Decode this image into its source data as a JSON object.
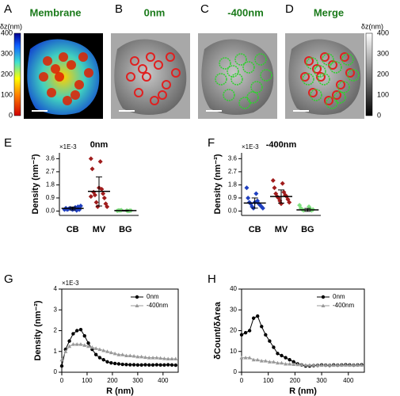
{
  "panels": [
    {
      "label": "A",
      "title": "Membrane"
    },
    {
      "label": "B",
      "title": "0nm"
    },
    {
      "label": "C",
      "title": "-400nm"
    },
    {
      "label": "D",
      "title": "Merge"
    }
  ],
  "colorbars": [
    {
      "title": "δz(nm)",
      "ticks": [
        400,
        300,
        200,
        100,
        0
      ]
    },
    {
      "title": "δz(nm)",
      "ticks": [
        400,
        300,
        200,
        100,
        0
      ]
    }
  ],
  "chart_data": [
    {
      "type": "dot",
      "panel": "E",
      "title": "0nm",
      "multiplier": "×1E-3",
      "y_label": "Density (nm⁻²)",
      "categories": [
        "CB",
        "MV",
        "BG"
      ],
      "colors": [
        "#1f3fbf",
        "#a01c1c",
        "#7fe07f"
      ],
      "points": [
        [
          0.1,
          0.15,
          0.2,
          0.25,
          0.1,
          0.05,
          0.15,
          0.3,
          0.2,
          0.1,
          0.15,
          0.35,
          0.1
        ],
        [
          3.6,
          3.4,
          2.9,
          1.5,
          1.3,
          1.2,
          1.1,
          0.9,
          0.6,
          0.5,
          0.3,
          0.3,
          1.6,
          1.0
        ],
        [
          0.02,
          0.03,
          0.05,
          0.0,
          0.04,
          0.02,
          0.06,
          0.03
        ]
      ],
      "means": [
        0.18,
        1.35,
        0.03
      ],
      "sd": [
        0.1,
        1.0,
        0.03
      ],
      "ylim": [
        -0.3,
        4.0
      ],
      "yticks": [
        {
          "value": 0,
          "label": "0.0"
        },
        0.9,
        1.8,
        2.7,
        3.6
      ]
    },
    {
      "type": "dot",
      "panel": "F",
      "title": "-400nm",
      "multiplier": "×1E-3",
      "y_label": "Density (nm⁻²)",
      "categories": [
        "CB",
        "MV",
        "BG"
      ],
      "colors": [
        "#1f3fbf",
        "#a01c1c",
        "#7fe07f"
      ],
      "points": [
        [
          1.6,
          1.2,
          0.9,
          0.7,
          0.6,
          0.5,
          0.5,
          0.4,
          0.3,
          0.3,
          0.2,
          0.2,
          0.6
        ],
        [
          2.1,
          1.9,
          1.6,
          1.3,
          1.2,
          1.1,
          1.0,
          1.0,
          0.9,
          0.8,
          0.7,
          0.6,
          0.5
        ],
        [
          0.4,
          0.3,
          0.2,
          0.15,
          0.1,
          0.05,
          0.05,
          0.1
        ]
      ],
      "means": [
        0.55,
        1.0,
        0.08
      ],
      "sd": [
        0.35,
        0.45,
        0.1
      ],
      "ylim": [
        -0.3,
        4.0
      ],
      "yticks": [
        {
          "value": 0,
          "label": "0.0"
        },
        0.9,
        1.8,
        2.7,
        3.6
      ]
    },
    {
      "type": "line",
      "panel": "G",
      "multiplier": "×1E-3",
      "y_label": "Density (nm⁻²)",
      "x_label": "R (nm)",
      "x": [
        0,
        15,
        30,
        45,
        60,
        75,
        90,
        105,
        120,
        135,
        150,
        165,
        180,
        195,
        210,
        225,
        240,
        255,
        270,
        285,
        300,
        315,
        330,
        345,
        360,
        375,
        390,
        405,
        420,
        435,
        450
      ],
      "series": [
        {
          "name": "0nm",
          "color": "#000000",
          "values": [
            0.3,
            1.1,
            1.5,
            1.85,
            2.0,
            2.05,
            1.75,
            1.4,
            1.1,
            0.85,
            0.7,
            0.6,
            0.5,
            0.45,
            0.42,
            0.4,
            0.38,
            0.37,
            0.36,
            0.36,
            0.35,
            0.35,
            0.36,
            0.35,
            0.35,
            0.36,
            0.35,
            0.35,
            0.36,
            0.35,
            0.34
          ]
        },
        {
          "name": "-400nm",
          "color": "#999999",
          "values": [
            0.6,
            1.0,
            1.25,
            1.35,
            1.35,
            1.35,
            1.3,
            1.25,
            1.2,
            1.15,
            1.1,
            1.05,
            1.0,
            0.95,
            0.9,
            0.85,
            0.85,
            0.8,
            0.8,
            0.78,
            0.75,
            0.75,
            0.72,
            0.7,
            0.7,
            0.7,
            0.68,
            0.66,
            0.65,
            0.65,
            0.65
          ]
        }
      ],
      "xlim": [
        0,
        460
      ],
      "ylim": [
        0,
        4
      ],
      "xticks": [
        0,
        100,
        200,
        300,
        400
      ],
      "yticks": [
        0,
        1,
        2,
        3,
        4
      ],
      "legend": "upper right"
    },
    {
      "type": "line",
      "panel": "H",
      "y_label": "δCount/δArea",
      "x_label": "R (nm)",
      "x": [
        0,
        15,
        30,
        45,
        60,
        75,
        90,
        105,
        120,
        135,
        150,
        165,
        180,
        195,
        210,
        225,
        240,
        255,
        270,
        285,
        300,
        315,
        330,
        345,
        360,
        375,
        390,
        405,
        420,
        435,
        450
      ],
      "series": [
        {
          "name": "0nm",
          "color": "#000000",
          "values": [
            18,
            19,
            20,
            26,
            27,
            22,
            18,
            15,
            12,
            9,
            8,
            7,
            6,
            5,
            4,
            3.5,
            3,
            3,
            3.2,
            3.3,
            3.5,
            3.4,
            3.3,
            3.5,
            3.4,
            3.5,
            3.6,
            3.5,
            3.4,
            3.5,
            3.6
          ]
        },
        {
          "name": "-400nm",
          "color": "#999999",
          "values": [
            7,
            7,
            7,
            6,
            6,
            5.5,
            5.5,
            5,
            5,
            4.5,
            4.5,
            4,
            4,
            3.8,
            3.7,
            3.6,
            3.5,
            3.5,
            3.5,
            3.4,
            3.4,
            3.5,
            3.5,
            3.4,
            3.5,
            3.5,
            3.5,
            3.4,
            3.5,
            3.5,
            3.5
          ]
        }
      ],
      "xlim": [
        0,
        460
      ],
      "ylim": [
        0,
        40
      ],
      "xticks": [
        0,
        100,
        200,
        300,
        400
      ],
      "yticks": [
        0,
        10,
        20,
        30,
        40
      ],
      "legend": "upper right"
    }
  ]
}
